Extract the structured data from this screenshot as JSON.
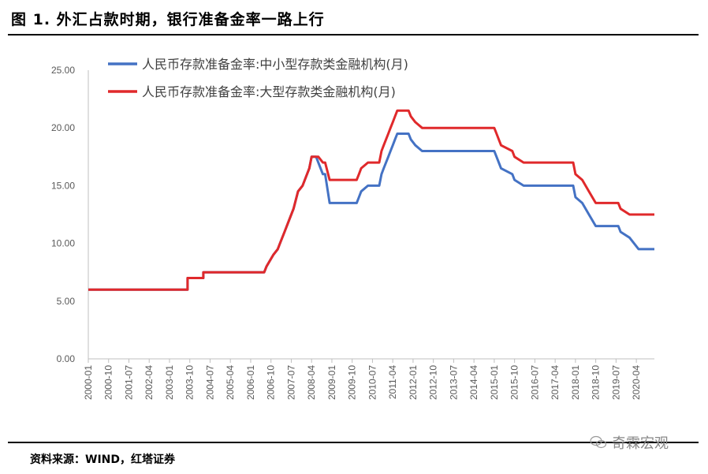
{
  "header": {
    "title": "图 1. 外汇占款时期，银行准备金率一路上行"
  },
  "footer": {
    "source": "资料来源：WIND，红塔证券",
    "watermark": "奇霖宏观"
  },
  "chart_data": {
    "type": "line",
    "title": "",
    "xlabel": "",
    "ylabel": "",
    "ylim": [
      0,
      25
    ],
    "yticks": [
      "0.00",
      "5.00",
      "10.00",
      "15.00",
      "20.00",
      "25.00"
    ],
    "xticks": [
      "2000-01",
      "2000-10",
      "2001-07",
      "2002-04",
      "2003-01",
      "2003-10",
      "2004-07",
      "2005-04",
      "2006-01",
      "2006-10",
      "2007-07",
      "2008-04",
      "2009-01",
      "2009-10",
      "2010-07",
      "2011-04",
      "2012-01",
      "2012-10",
      "2013-07",
      "2014-04",
      "2015-01",
      "2015-10",
      "2016-07",
      "2017-04",
      "2018-01",
      "2018-10",
      "2019-07",
      "2020-04"
    ],
    "x_range": [
      "2000-01",
      "2020-12"
    ],
    "grid": false,
    "legend": "top-left",
    "series": [
      {
        "name": "人民币存款准备金率:中小型存款类金融机构(月)",
        "color": "#4472C4",
        "points": [
          [
            "2000-01",
            6
          ],
          [
            "2003-09",
            6
          ],
          [
            "2003-09",
            7
          ],
          [
            "2004-04",
            7
          ],
          [
            "2004-04",
            7.5
          ],
          [
            "2006-07",
            7.5
          ],
          [
            "2006-08",
            8
          ],
          [
            "2006-11",
            9
          ],
          [
            "2007-01",
            9.5
          ],
          [
            "2007-02",
            10
          ],
          [
            "2007-04",
            11
          ],
          [
            "2007-06",
            12
          ],
          [
            "2007-08",
            13
          ],
          [
            "2007-10",
            14.5
          ],
          [
            "2007-12",
            15
          ],
          [
            "2008-01",
            15.5
          ],
          [
            "2008-03",
            16.5
          ],
          [
            "2008-04",
            17.5
          ],
          [
            "2008-06",
            17.5
          ],
          [
            "2008-09",
            16
          ],
          [
            "2008-10",
            16
          ],
          [
            "2008-12",
            13.5
          ],
          [
            "2009-12",
            13.5
          ],
          [
            "2010-01",
            14
          ],
          [
            "2010-02",
            14.5
          ],
          [
            "2010-05",
            15
          ],
          [
            "2010-10",
            15
          ],
          [
            "2010-11",
            16
          ],
          [
            "2010-12",
            16.5
          ],
          [
            "2011-01",
            17
          ],
          [
            "2011-02",
            17.5
          ],
          [
            "2011-03",
            18
          ],
          [
            "2011-04",
            18.5
          ],
          [
            "2011-05",
            19
          ],
          [
            "2011-06",
            19.5
          ],
          [
            "2011-11",
            19.5
          ],
          [
            "2011-12",
            19
          ],
          [
            "2012-02",
            18.5
          ],
          [
            "2012-05",
            18
          ],
          [
            "2015-01",
            18
          ],
          [
            "2015-02",
            17.5
          ],
          [
            "2015-04",
            16.5
          ],
          [
            "2015-09",
            16
          ],
          [
            "2015-10",
            15.5
          ],
          [
            "2016-02",
            15
          ],
          [
            "2017-12",
            15
          ],
          [
            "2018-01",
            14
          ],
          [
            "2018-04",
            13.5
          ],
          [
            "2018-07",
            12.5
          ],
          [
            "2018-10",
            11.5
          ],
          [
            "2019-08",
            11.5
          ],
          [
            "2019-09",
            11
          ],
          [
            "2020-01",
            10.5
          ],
          [
            "2020-05",
            9.5
          ],
          [
            "2020-12",
            9.5
          ]
        ]
      },
      {
        "name": "人民币存款准备金率:大型存款类金融机构(月)",
        "color": "#E0292B",
        "points": [
          [
            "2000-01",
            6
          ],
          [
            "2003-09",
            6
          ],
          [
            "2003-09",
            7
          ],
          [
            "2004-04",
            7
          ],
          [
            "2004-04",
            7.5
          ],
          [
            "2006-07",
            7.5
          ],
          [
            "2006-08",
            8
          ],
          [
            "2006-11",
            9
          ],
          [
            "2007-01",
            9.5
          ],
          [
            "2007-02",
            10
          ],
          [
            "2007-04",
            11
          ],
          [
            "2007-06",
            12
          ],
          [
            "2007-08",
            13
          ],
          [
            "2007-10",
            14.5
          ],
          [
            "2007-12",
            15
          ],
          [
            "2008-01",
            15.5
          ],
          [
            "2008-03",
            16.5
          ],
          [
            "2008-04",
            17.5
          ],
          [
            "2008-07",
            17.5
          ],
          [
            "2008-09",
            17
          ],
          [
            "2008-10",
            17
          ],
          [
            "2008-12",
            15.5
          ],
          [
            "2009-12",
            15.5
          ],
          [
            "2010-01",
            16
          ],
          [
            "2010-02",
            16.5
          ],
          [
            "2010-05",
            17
          ],
          [
            "2010-10",
            17
          ],
          [
            "2010-11",
            18
          ],
          [
            "2010-12",
            18.5
          ],
          [
            "2011-01",
            19
          ],
          [
            "2011-02",
            19.5
          ],
          [
            "2011-03",
            20
          ],
          [
            "2011-04",
            20.5
          ],
          [
            "2011-05",
            21
          ],
          [
            "2011-06",
            21.5
          ],
          [
            "2011-11",
            21.5
          ],
          [
            "2011-12",
            21
          ],
          [
            "2012-02",
            20.5
          ],
          [
            "2012-05",
            20
          ],
          [
            "2015-01",
            20
          ],
          [
            "2015-02",
            19.5
          ],
          [
            "2015-04",
            18.5
          ],
          [
            "2015-09",
            18
          ],
          [
            "2015-10",
            17.5
          ],
          [
            "2016-02",
            17
          ],
          [
            "2017-12",
            17
          ],
          [
            "2018-01",
            16
          ],
          [
            "2018-04",
            15.5
          ],
          [
            "2018-07",
            14.5
          ],
          [
            "2018-10",
            13.5
          ],
          [
            "2019-08",
            13.5
          ],
          [
            "2019-09",
            13
          ],
          [
            "2020-01",
            12.5
          ],
          [
            "2020-12",
            12.5
          ]
        ]
      }
    ]
  }
}
